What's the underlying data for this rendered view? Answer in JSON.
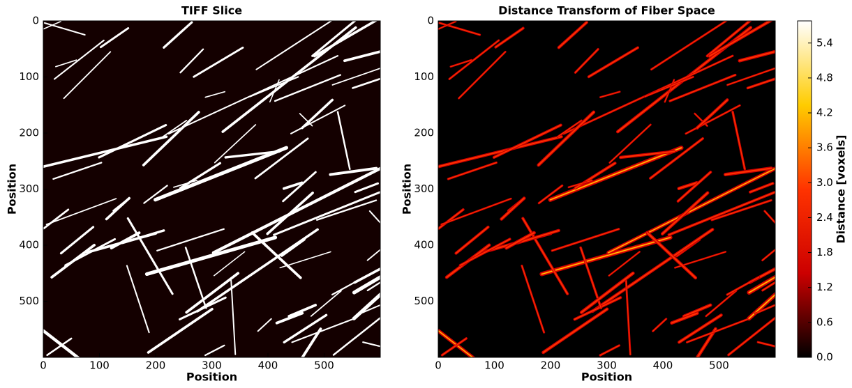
{
  "chart_data": [
    {
      "type": "image",
      "title": "TIFF Slice",
      "xlabel": "Position",
      "ylabel": "Position",
      "xlim": [
        0,
        600
      ],
      "ylim": [
        600,
        0
      ],
      "xticks": [
        0,
        100,
        200,
        300,
        400,
        500
      ],
      "yticks": [
        0,
        100,
        200,
        300,
        400,
        500
      ],
      "colors": [
        "#140000",
        "#ffffff"
      ]
    },
    {
      "type": "heatmap",
      "title": "Distance Transform of Fiber Space",
      "xlabel": "Position",
      "ylabel": "Position",
      "xlim": [
        0,
        600
      ],
      "ylim": [
        600,
        0
      ],
      "xticks": [
        0,
        100,
        200,
        300,
        400,
        500
      ],
      "yticks": [
        0,
        100,
        200,
        300,
        400,
        500
      ],
      "colors": [
        "#000000",
        "#cc0000",
        "#ff3300",
        "#ffcc00",
        "#ffffff"
      ],
      "colorbar": {
        "label": "Distance [voxels]",
        "lim": [
          0,
          5.78
        ],
        "ticks": [
          {
            "value": 0,
            "label": "0.0"
          },
          0.6,
          1.2,
          1.8,
          2.4,
          {
            "value": 3,
            "label": "3.0"
          },
          3.6,
          4.2,
          4.8,
          5.4
        ]
      }
    }
  ]
}
